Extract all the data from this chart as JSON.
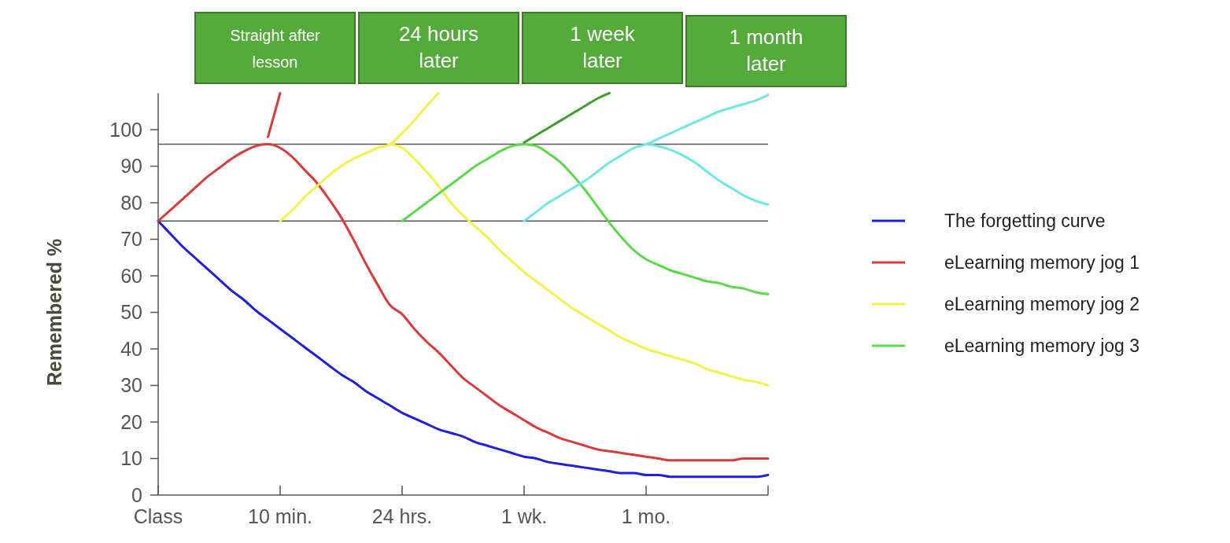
{
  "chart_data": {
    "type": "line",
    "ylabel": "Remembered %",
    "categories": [
      "Class",
      null,
      null,
      null,
      null,
      null,
      null,
      null,
      null,
      null,
      "10 min.",
      null,
      null,
      null,
      null,
      null,
      null,
      null,
      null,
      null,
      "24 hrs.",
      null,
      null,
      null,
      null,
      null,
      null,
      null,
      null,
      null,
      "1 wk.",
      null,
      null,
      null,
      null,
      null,
      null,
      null,
      null,
      null,
      "1 mo.",
      null,
      null,
      null,
      null,
      null,
      null,
      null,
      null,
      null,
      null
    ],
    "ylim": [
      0,
      110
    ],
    "yticks": [
      0,
      10,
      20,
      30,
      40,
      50,
      60,
      70,
      80,
      90,
      100
    ],
    "legend": "right",
    "line_style": "solid",
    "annotations": [
      "Straight after lesson",
      "24 hours later",
      "1 week later",
      "1 month later"
    ],
    "ref_lines": [
      {
        "axis": "y",
        "value": 96,
        "label": null,
        "color": "#555555"
      },
      {
        "axis": "y",
        "value": 75,
        "label": null,
        "color": "#555555"
      }
    ],
    "series": [
      {
        "name": "The forgetting curve",
        "color": "#1e1ee0",
        "values": [
          75,
          71.5,
          68,
          65,
          62,
          59,
          56,
          53.5,
          50.5,
          48,
          45.5,
          43,
          40.5,
          38,
          35.5,
          33,
          31,
          28.5,
          26.5,
          24.5,
          22.5,
          21,
          19.5,
          18,
          17,
          16,
          14.5,
          13.5,
          12.5,
          11.5,
          10.5,
          10,
          9,
          8.5,
          8,
          7.5,
          7,
          6.5,
          6,
          6,
          5.5,
          5.5,
          5,
          5,
          5,
          5,
          5,
          5,
          5,
          5,
          5.5
        ]
      },
      {
        "name": "eLearning memory jog 1",
        "color": "#d93a3a",
        "values": [
          75,
          78,
          81,
          84,
          87,
          89.5,
          92,
          94,
          95.5,
          96,
          95,
          92.5,
          89,
          85.5,
          81,
          76,
          70,
          63.5,
          57.5,
          52,
          49.5,
          45.5,
          42,
          39,
          35.5,
          32,
          29.5,
          27,
          24.5,
          22.5,
          20.5,
          18.5,
          17,
          15.5,
          14.5,
          13.5,
          12.5,
          12,
          11.5,
          11,
          10.5,
          10,
          9.5,
          9.5,
          9.5,
          9.5,
          9.5,
          9.5,
          10,
          10,
          10
        ]
      },
      {
        "color": "#d93a3a",
        "values": [
          null,
          null,
          null,
          null,
          null,
          null,
          null,
          null,
          null,
          98,
          110,
          null,
          null,
          null,
          null,
          null,
          null,
          null,
          null,
          null,
          null,
          null,
          null,
          null,
          null,
          null,
          null,
          null,
          null,
          null,
          null,
          null,
          null,
          null,
          null,
          null,
          null,
          null,
          null,
          null,
          null,
          null,
          null,
          null,
          null,
          null,
          null,
          null,
          null,
          null,
          null
        ]
      },
      {
        "name": "eLearning memory jog 2",
        "color": "#f2f24a",
        "values": [
          null,
          null,
          null,
          null,
          null,
          null,
          null,
          null,
          null,
          null,
          null,
          null,
          null,
          null,
          null,
          null,
          null,
          null,
          null,
          96,
          95,
          92,
          88.5,
          84.5,
          80,
          76.5,
          73.5,
          70.5,
          67,
          64,
          61,
          58.5,
          56,
          53.5,
          51,
          49,
          47,
          45,
          43,
          41.5,
          40,
          39,
          38,
          37,
          36,
          34.5,
          33.5,
          32.5,
          31.5,
          31,
          30
        ]
      },
      {
        "color": "#f2f24a",
        "values": [
          null,
          null,
          null,
          null,
          null,
          null,
          null,
          null,
          null,
          null,
          75,
          78,
          81.5,
          84.5,
          87.5,
          90,
          92,
          93.5,
          95,
          96,
          99,
          102.5,
          106.5,
          110,
          null,
          null,
          null,
          null,
          null,
          null,
          null,
          null,
          null,
          null,
          null,
          null,
          null,
          null,
          null,
          null,
          null,
          null,
          null,
          null,
          null,
          null,
          null,
          null,
          null,
          null,
          null
        ]
      },
      {
        "name": "eLearning memory jog 3",
        "color": "#5cd94a",
        "values": [
          null,
          null,
          null,
          null,
          null,
          null,
          null,
          null,
          null,
          null,
          null,
          null,
          null,
          null,
          null,
          null,
          null,
          null,
          null,
          null,
          null,
          null,
          null,
          null,
          null,
          null,
          null,
          null,
          null,
          null,
          96,
          95.5,
          93.5,
          91,
          87.5,
          83.5,
          79,
          74.5,
          70.5,
          67,
          64.5,
          63,
          61.5,
          60.5,
          59.5,
          58.5,
          58,
          57,
          56.5,
          55.5,
          55
        ]
      },
      {
        "color": "#5cd94a",
        "values": [
          null,
          null,
          null,
          null,
          null,
          null,
          null,
          null,
          null,
          null,
          null,
          null,
          null,
          null,
          null,
          null,
          null,
          null,
          null,
          null,
          75,
          77.5,
          80,
          82.5,
          85,
          87.5,
          90,
          92,
          94,
          95.5,
          96,
          null,
          null,
          null,
          null,
          null,
          null,
          null,
          null,
          null,
          null,
          null,
          null,
          null,
          null,
          null,
          null,
          null,
          null,
          null,
          null
        ]
      },
      {
        "color": "#3f9f2f",
        "values": [
          null,
          null,
          null,
          null,
          null,
          null,
          null,
          null,
          null,
          null,
          null,
          null,
          null,
          null,
          null,
          null,
          null,
          null,
          null,
          null,
          null,
          null,
          null,
          null,
          null,
          null,
          null,
          null,
          null,
          null,
          96.5,
          98.5,
          100.5,
          102.5,
          104.5,
          106.5,
          108.5,
          110,
          null,
          null,
          null,
          null,
          null,
          null,
          null,
          null,
          null,
          null,
          null,
          null,
          null
        ]
      },
      {
        "color": "#6ee8e0",
        "values": [
          null,
          null,
          null,
          null,
          null,
          null,
          null,
          null,
          null,
          null,
          null,
          null,
          null,
          null,
          null,
          null,
          null,
          null,
          null,
          null,
          null,
          null,
          null,
          null,
          null,
          null,
          null,
          null,
          null,
          null,
          75,
          77.5,
          80,
          82,
          84,
          86,
          88.5,
          91,
          93,
          95,
          96,
          97.5,
          99,
          100.5,
          102,
          103.5,
          105,
          106,
          107,
          108,
          109.5
        ]
      },
      {
        "color": "#6ee8e0",
        "values": [
          null,
          null,
          null,
          null,
          null,
          null,
          null,
          null,
          null,
          null,
          null,
          null,
          null,
          null,
          null,
          null,
          null,
          null,
          null,
          null,
          null,
          null,
          null,
          null,
          null,
          null,
          null,
          null,
          null,
          null,
          null,
          null,
          null,
          null,
          null,
          null,
          null,
          null,
          null,
          null,
          96,
          95.5,
          94.5,
          93,
          91,
          88.5,
          86,
          84,
          82,
          80.5,
          79.5
        ]
      }
    ]
  }
}
